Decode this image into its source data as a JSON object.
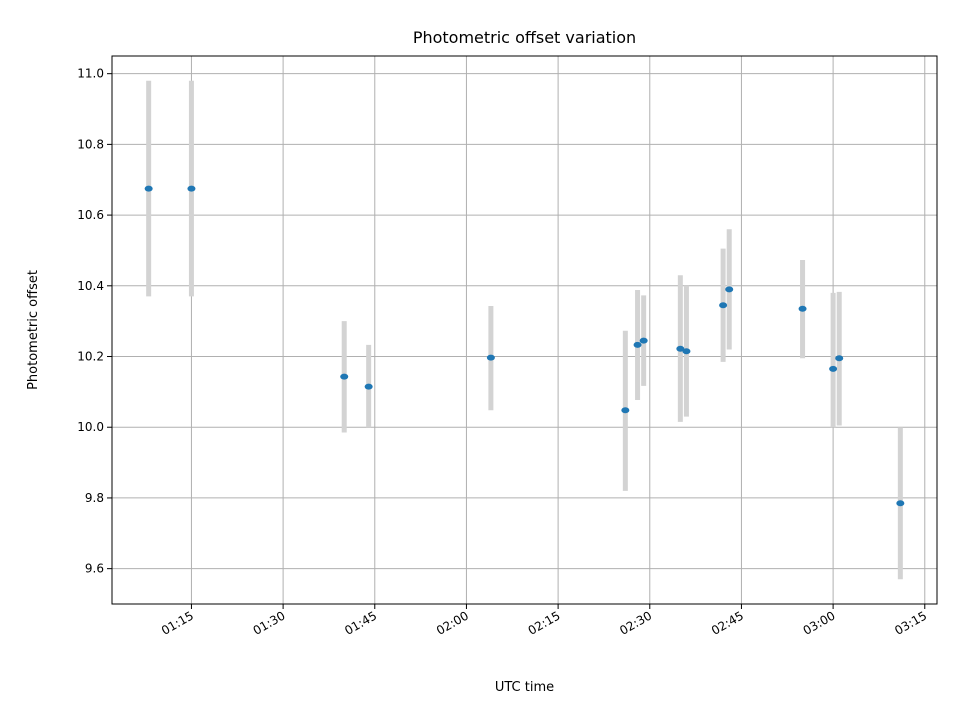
{
  "chart_data": {
    "type": "scatter",
    "title": "Photometric offset variation",
    "xlabel": "UTC time",
    "ylabel": "Photometric offset",
    "ylim": [
      9.5,
      11.05
    ],
    "xlim": [
      "01:02",
      "03:17"
    ],
    "x_ticks": [
      "01:15",
      "01:30",
      "01:45",
      "02:00",
      "02:15",
      "02:30",
      "02:45",
      "03:00",
      "03:15"
    ],
    "y_ticks": [
      "9.6",
      "9.8",
      "10.0",
      "10.2",
      "10.4",
      "10.6",
      "10.8",
      "11.0"
    ],
    "grid": true,
    "legend": "none",
    "series": [
      {
        "color": "#1f77b4",
        "errorbar_color": "#d3d3d3",
        "points": [
          {
            "x": "01:08",
            "y": 10.675,
            "ylow": 10.37,
            "yhigh": 10.98
          },
          {
            "x": "01:15",
            "y": 10.675,
            "ylow": 10.37,
            "yhigh": 10.98
          },
          {
            "x": "01:40",
            "y": 10.143,
            "ylow": 9.985,
            "yhigh": 10.3
          },
          {
            "x": "01:44",
            "y": 10.115,
            "ylow": 10.0,
            "yhigh": 10.233
          },
          {
            "x": "02:04",
            "y": 10.197,
            "ylow": 10.048,
            "yhigh": 10.343
          },
          {
            "x": "02:26",
            "y": 10.048,
            "ylow": 9.82,
            "yhigh": 10.273
          },
          {
            "x": "02:28",
            "y": 10.233,
            "ylow": 10.077,
            "yhigh": 10.388
          },
          {
            "x": "02:29",
            "y": 10.245,
            "ylow": 10.117,
            "yhigh": 10.373
          },
          {
            "x": "02:35",
            "y": 10.222,
            "ylow": 10.015,
            "yhigh": 10.43
          },
          {
            "x": "02:36",
            "y": 10.215,
            "ylow": 10.03,
            "yhigh": 10.4
          },
          {
            "x": "02:42",
            "y": 10.345,
            "ylow": 10.185,
            "yhigh": 10.505
          },
          {
            "x": "02:43",
            "y": 10.39,
            "ylow": 10.22,
            "yhigh": 10.56
          },
          {
            "x": "02:55",
            "y": 10.335,
            "ylow": 10.195,
            "yhigh": 10.473
          },
          {
            "x": "03:00",
            "y": 10.165,
            "ylow": 10.0,
            "yhigh": 10.38
          },
          {
            "x": "03:01",
            "y": 10.195,
            "ylow": 10.005,
            "yhigh": 10.383
          },
          {
            "x": "03:11",
            "y": 9.785,
            "ylow": 9.57,
            "yhigh": 10.0
          }
        ]
      }
    ]
  }
}
